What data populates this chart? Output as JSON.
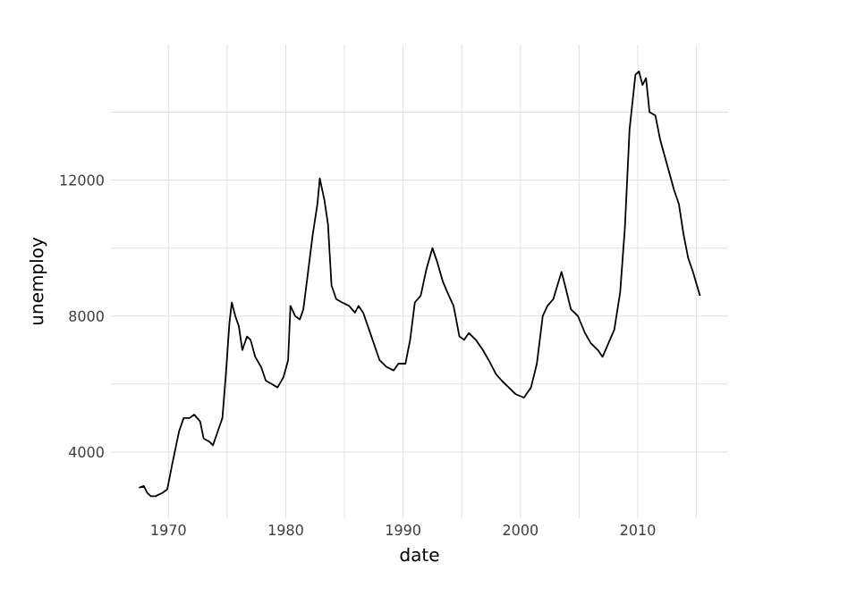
{
  "chart_data": {
    "type": "line",
    "xlabel": "date",
    "ylabel": "unemploy",
    "x": [
      1967.5,
      1967.9,
      1968.2,
      1968.5,
      1968.9,
      1969.5,
      1969.9,
      1970.3,
      1970.6,
      1970.9,
      1971.3,
      1971.8,
      1972.2,
      1972.7,
      1973.0,
      1973.5,
      1973.8,
      1974.2,
      1974.6,
      1974.9,
      1975.2,
      1975.4,
      1975.7,
      1976.0,
      1976.3,
      1976.7,
      1977.0,
      1977.4,
      1977.9,
      1978.3,
      1978.8,
      1979.3,
      1979.8,
      1980.2,
      1980.4,
      1980.8,
      1981.2,
      1981.5,
      1981.9,
      1982.3,
      1982.7,
      1982.9,
      1983.3,
      1983.6,
      1983.9,
      1984.3,
      1984.8,
      1985.4,
      1985.9,
      1986.2,
      1986.6,
      1987.0,
      1987.5,
      1988.0,
      1988.6,
      1989.2,
      1989.6,
      1990.2,
      1990.6,
      1991.0,
      1991.5,
      1992.0,
      1992.5,
      1992.9,
      1993.4,
      1993.9,
      1994.3,
      1994.8,
      1995.2,
      1995.6,
      1996.2,
      1996.8,
      1997.3,
      1997.9,
      1998.4,
      1999.0,
      1999.6,
      2000.3,
      2000.9,
      2001.4,
      2001.9,
      2002.3,
      2002.8,
      2003.5,
      2003.8,
      2004.3,
      2004.9,
      2005.5,
      2006.0,
      2006.6,
      2007.0,
      2007.5,
      2008.0,
      2008.5,
      2008.9,
      2009.3,
      2009.8,
      2010.1,
      2010.4,
      2010.7,
      2011.0,
      2011.5,
      2011.9,
      2012.3,
      2012.7,
      2013.1,
      2013.5,
      2013.9,
      2014.3,
      2014.7,
      2015.3
    ],
    "values": [
      2950,
      3000,
      2800,
      2700,
      2700,
      2800,
      2900,
      3600,
      4100,
      4600,
      5000,
      5000,
      5100,
      4900,
      4400,
      4300,
      4200,
      4600,
      5000,
      6300,
      7800,
      8400,
      8000,
      7700,
      7000,
      7400,
      7300,
      6800,
      6500,
      6100,
      6000,
      5900,
      6200,
      6700,
      8300,
      8000,
      7900,
      8200,
      9300,
      10400,
      11300,
      12050,
      11400,
      10700,
      8900,
      8500,
      8400,
      8300,
      8100,
      8300,
      8100,
      7700,
      7200,
      6700,
      6500,
      6400,
      6600,
      6600,
      7300,
      8400,
      8600,
      9400,
      10000,
      9600,
      9000,
      8600,
      8300,
      7400,
      7300,
      7500,
      7300,
      7000,
      6700,
      6300,
      6100,
      5900,
      5700,
      5600,
      5900,
      6600,
      8000,
      8300,
      8500,
      9300,
      8900,
      8200,
      8000,
      7500,
      7200,
      7000,
      6800,
      7200,
      7600,
      8700,
      10600,
      13500,
      15100,
      15200,
      14800,
      15000,
      14000,
      13900,
      13200,
      12700,
      12200,
      11700,
      11300,
      10400,
      9700,
      9300,
      8600
    ],
    "color": "#000000",
    "xlim": [
      1965.1,
      2017.7
    ],
    "ylim": [
      2052,
      15985
    ],
    "xticks": [
      1970,
      {
        "value": 1975,
        "label": null
      },
      1980,
      {
        "value": 1985,
        "label": null
      },
      1990,
      {
        "value": 1995,
        "label": null
      },
      2000,
      {
        "value": 2005,
        "label": null
      },
      2010,
      {
        "value": 2015,
        "label": null
      }
    ],
    "yticks": [
      4000,
      {
        "value": 6000,
        "label": null
      },
      8000,
      {
        "value": 10000,
        "label": null
      },
      12000,
      {
        "value": 14000,
        "label": null
      }
    ],
    "grid": true,
    "marker": "none",
    "line_style": "solid"
  }
}
